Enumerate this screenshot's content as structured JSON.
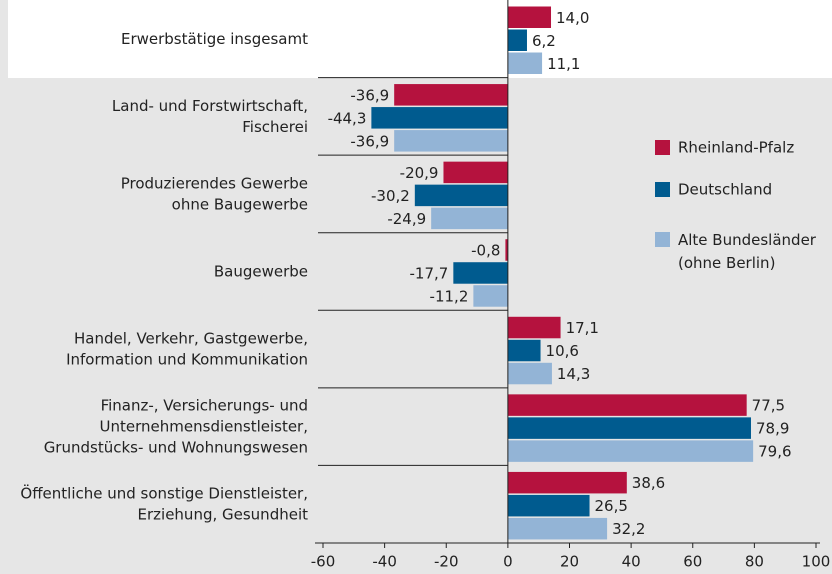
{
  "chart_data": {
    "type": "barh",
    "categories": [
      [
        "Erwerbstätige insgesamt"
      ],
      [
        "Land- und Forstwirtschaft,",
        "Fischerei"
      ],
      [
        "Produzierendes Gewerbe",
        "ohne Baugewerbe"
      ],
      [
        "Baugewerbe"
      ],
      [
        "Handel, Verkehr, Gastgewerbe,",
        "Information und Kommunikation"
      ],
      [
        "Finanz-, Versicherungs- und",
        "Unternehmensdienstleister,",
        "Grundstücks- und Wohnungswesen"
      ],
      [
        "Öffentliche und sonstige Dienstleister,",
        "Erziehung, Gesundheit"
      ]
    ],
    "series": [
      {
        "name": "Rheinland-Pfalz",
        "color": "#b5123e",
        "label_color": "#b5123e",
        "values": [
          14.0,
          -36.9,
          -20.9,
          -0.8,
          17.1,
          77.5,
          38.6
        ],
        "value_labels": [
          "14,0",
          "-36,9",
          "-20,9",
          "-0,8",
          "17,1",
          "77,5",
          "38,6"
        ]
      },
      {
        "name": "Deutschland",
        "color": "#005b8f",
        "label_color": "#005b8f",
        "values": [
          6.2,
          -44.3,
          -30.2,
          -17.7,
          10.6,
          78.9,
          26.5
        ],
        "value_labels": [
          "6,2",
          "-44,3",
          "-30,2",
          "-17,7",
          "10,6",
          "78,9",
          "26,5"
        ]
      },
      {
        "name": "Alte Bundesländer (ohne Berlin)",
        "legend_lines": [
          "Alte Bundesländer",
          "(ohne Berlin)"
        ],
        "color": "#93b4d6",
        "label_color": "#2d6e9e",
        "values": [
          11.1,
          -36.9,
          -24.9,
          -11.2,
          14.3,
          79.6,
          32.2
        ],
        "value_labels": [
          "11,1",
          "-36,9",
          "-24,9",
          "-11,2",
          "14,3",
          "79,6",
          "32,2"
        ]
      }
    ],
    "xlim": [
      -60,
      100
    ],
    "xticks": [
      -60,
      -40,
      -20,
      0,
      20,
      40,
      60,
      80,
      100
    ]
  }
}
